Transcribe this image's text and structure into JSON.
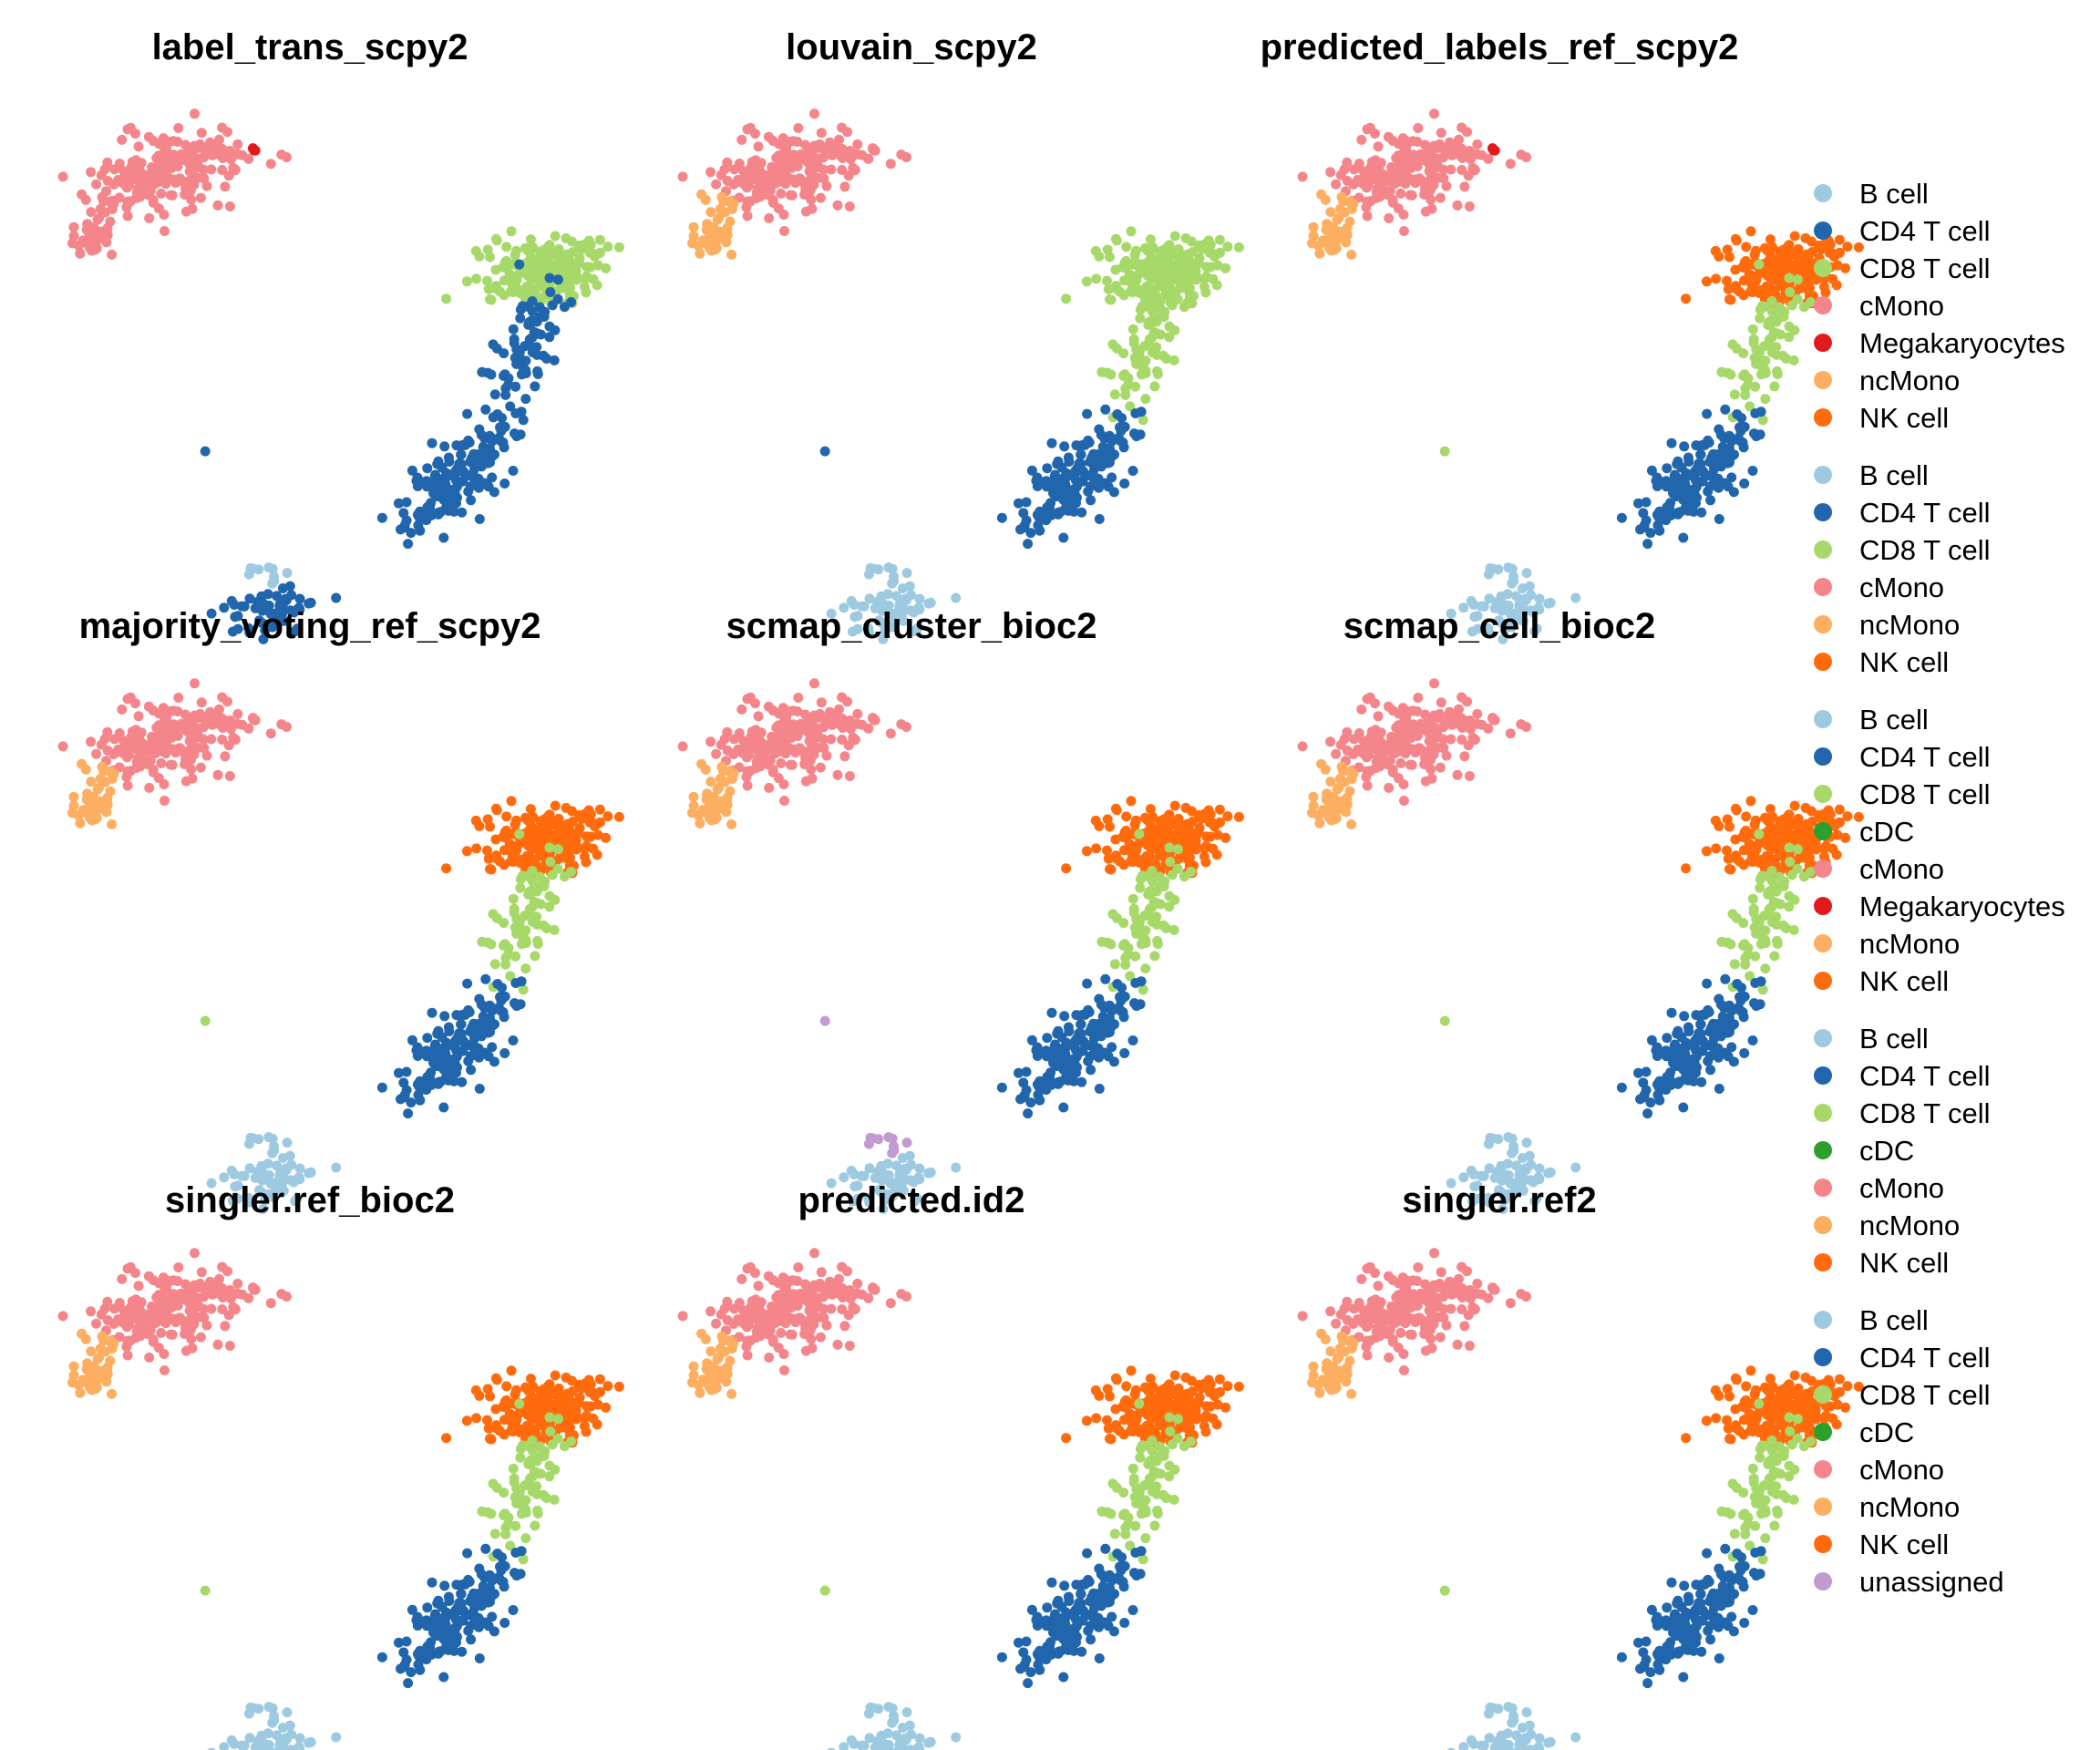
{
  "palette": {
    "B cell": "#9ecae1",
    "CD4 T cell": "#2166ac",
    "CD8 T cell": "#a6d96a",
    "cDC": "#2ca02c",
    "cMono": "#f4858a",
    "Megakaryocytes": "#e31a1c",
    "ncMono": "#fdae61",
    "NK cell": "#ff6a0d",
    "unassigned": "#c29ad0"
  },
  "legend_groups": [
    {
      "labels": [
        "B cell",
        "CD4 T cell",
        "CD8 T cell",
        "cMono",
        "Megakaryocytes",
        "ncMono",
        "NK cell"
      ]
    },
    {
      "labels": [
        "B cell",
        "CD4 T cell",
        "CD8 T cell",
        "cMono",
        "ncMono",
        "NK cell"
      ]
    },
    {
      "labels": [
        "B cell",
        "CD4 T cell",
        "CD8 T cell",
        "cDC",
        "cMono",
        "Megakaryocytes",
        "ncMono",
        "NK cell"
      ]
    },
    {
      "labels": [
        "B cell",
        "CD4 T cell",
        "CD8 T cell",
        "cDC",
        "cMono",
        "ncMono",
        "NK cell"
      ]
    },
    {
      "labels": [
        "B cell",
        "CD4 T cell",
        "CD8 T cell",
        "cDC",
        "cMono",
        "ncMono",
        "NK cell",
        "unassigned"
      ]
    }
  ],
  "chart_data": [
    {
      "type": "scatter",
      "title": "label_trans_scpy2",
      "cluster_labels": {
        "mono": "cMono",
        "monoTail": "cMono",
        "megaTip": "Megakaryocytes",
        "lowerMono": "cMono",
        "upperT": "CD8 T cell",
        "lowerT": "CD4 T cell",
        "midT": "CD4 T cell",
        "bCells": "CD4 T cell",
        "bCellsTop": "B cell",
        "isolated": "CD4 T cell"
      }
    },
    {
      "type": "scatter",
      "title": "louvain_scpy2",
      "cluster_labels": {
        "mono": "cMono",
        "monoTail": "cMono",
        "megaTip": "cMono",
        "lowerMono": "ncMono",
        "upperT": "CD8 T cell",
        "lowerT": "CD4 T cell",
        "midT": "CD8 T cell",
        "bCells": "B cell",
        "bCellsTop": "B cell",
        "isolated": "CD4 T cell"
      }
    },
    {
      "type": "scatter",
      "title": "predicted_labels_ref_scpy2",
      "cluster_labels": {
        "mono": "cMono",
        "monoTail": "cMono",
        "megaTip": "Megakaryocytes",
        "lowerMono": "ncMono",
        "upperT": "NK cell",
        "lowerT": "CD4 T cell",
        "midT": "CD8 T cell",
        "bCells": "B cell",
        "bCellsTop": "B cell",
        "isolated": "CD8 T cell"
      }
    },
    {
      "type": "scatter",
      "title": "majority_voting_ref_scpy2",
      "cluster_labels": {
        "mono": "cMono",
        "monoTail": "cMono",
        "megaTip": "cMono",
        "lowerMono": "ncMono",
        "upperT": "NK cell",
        "lowerT": "CD4 T cell",
        "midT": "CD8 T cell",
        "bCells": "B cell",
        "bCellsTop": "B cell",
        "isolated": "CD8 T cell"
      }
    },
    {
      "type": "scatter",
      "title": "scmap_cluster_bioc2",
      "cluster_labels": {
        "mono": "cMono",
        "monoTail": "cMono",
        "megaTip": "cMono",
        "lowerMono": "ncMono",
        "upperT": "NK cell",
        "lowerT": "CD4 T cell",
        "midT": "CD8 T cell",
        "bCells": "B cell",
        "bCellsTop": "unassigned",
        "isolated": "unassigned"
      }
    },
    {
      "type": "scatter",
      "title": "scmap_cell_bioc2",
      "cluster_labels": {
        "mono": "cMono",
        "monoTail": "cMono",
        "megaTip": "cMono",
        "lowerMono": "ncMono",
        "upperT": "NK cell",
        "lowerT": "CD4 T cell",
        "midT": "CD8 T cell",
        "bCells": "B cell",
        "bCellsTop": "B cell",
        "isolated": "CD8 T cell"
      }
    },
    {
      "type": "scatter",
      "title": "singler.ref_bioc2",
      "cluster_labels": {
        "mono": "cMono",
        "monoTail": "cMono",
        "megaTip": "cMono",
        "lowerMono": "ncMono",
        "upperT": "NK cell",
        "lowerT": "CD4 T cell",
        "midT": "CD8 T cell",
        "bCells": "B cell",
        "bCellsTop": "B cell",
        "isolated": "CD8 T cell"
      }
    },
    {
      "type": "scatter",
      "title": "predicted.id2",
      "cluster_labels": {
        "mono": "cMono",
        "monoTail": "cMono",
        "megaTip": "cMono",
        "lowerMono": "ncMono",
        "upperT": "NK cell",
        "lowerT": "CD4 T cell",
        "midT": "CD8 T cell",
        "bCells": "B cell",
        "bCellsTop": "B cell",
        "isolated": "CD8 T cell"
      }
    },
    {
      "type": "scatter",
      "title": "singler.ref2",
      "cluster_labels": {
        "mono": "cMono",
        "monoTail": "cMono",
        "megaTip": "cMono",
        "lowerMono": "ncMono",
        "upperT": "NK cell",
        "lowerT": "CD4 T cell",
        "midT": "CD8 T cell",
        "bCells": "B cell",
        "bCellsTop": "B cell",
        "isolated": "CD8 T cell"
      }
    }
  ]
}
